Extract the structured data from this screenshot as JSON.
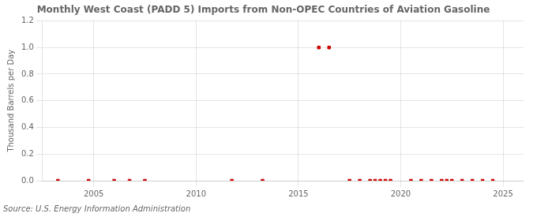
{
  "chart_data": {
    "type": "scatter",
    "title": "Monthly West Coast (PADD 5) Imports from Non-OPEC Countries of Aviation Gasoline",
    "ylabel": "Thousand Barrels per Day",
    "source": "Source: U.S. Energy Information Administration",
    "color": "#cc0000",
    "marker": "square",
    "grid": true,
    "x": [
      2003.25,
      2004.75,
      2006.0,
      2006.75,
      2007.5,
      2011.75,
      2013.25,
      2016.0,
      2016.5,
      2017.5,
      2018.0,
      2018.5,
      2018.75,
      2019.0,
      2019.25,
      2019.5,
      2020.5,
      2021.0,
      2021.5,
      2022.0,
      2022.25,
      2022.5,
      2023.0,
      2023.5,
      2024.0,
      2024.5
    ],
    "values": [
      0.0,
      0.0,
      0.0,
      0.0,
      0.0,
      0.0,
      0.0,
      1.0,
      1.0,
      0.0,
      0.0,
      0.0,
      0.0,
      0.0,
      0.0,
      0.0,
      0.0,
      0.0,
      0.0,
      0.0,
      0.0,
      0.0,
      0.0,
      0.0,
      0.0,
      0.0
    ],
    "xlim": [
      2002.5,
      2026
    ],
    "xticks": [
      2005,
      2010,
      2015,
      2020,
      2025
    ],
    "ylim": [
      0.0,
      1.2
    ],
    "yticks": [
      {
        "value": 0.0,
        "label": "0.0"
      },
      0.2,
      0.4,
      0.6,
      0.8,
      {
        "value": 1.0,
        "label": "1.0"
      },
      1.2
    ]
  }
}
